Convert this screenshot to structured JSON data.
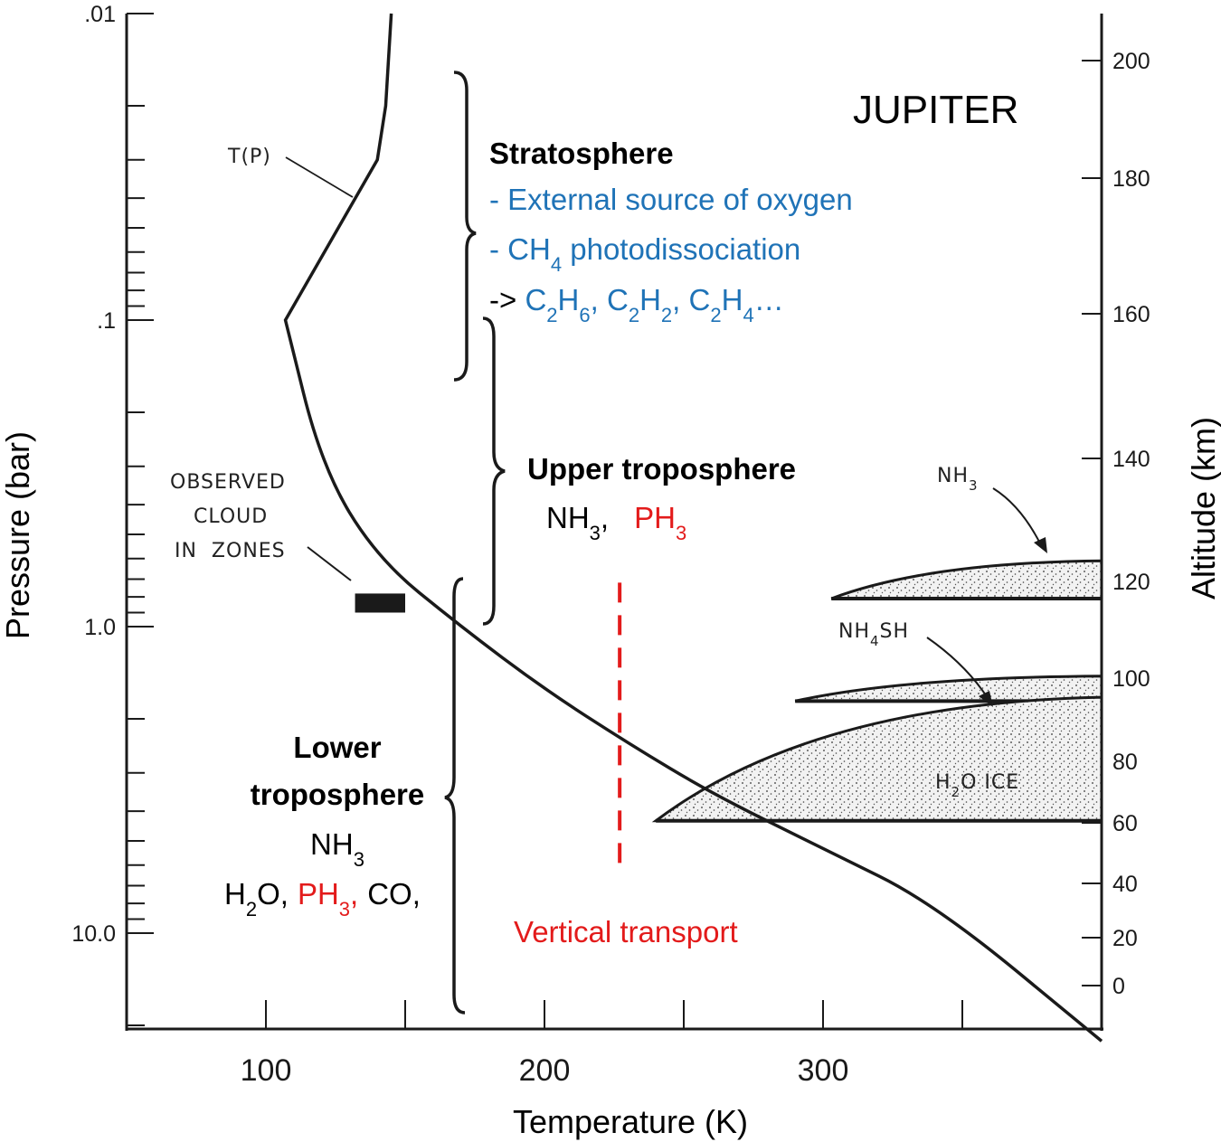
{
  "chart_data": {
    "type": "line",
    "title": "JUPITER",
    "xlabel": "Temperature (K)",
    "ylabel": "Pressure (bar)",
    "y2label": "Altitude (km)",
    "xlim": [
      50,
      400
    ],
    "ylim": [
      0.01,
      30
    ],
    "y_scale": "log",
    "y_inverted": true,
    "x_ticks": [
      100,
      200,
      300
    ],
    "x_tick_labels": [
      "100",
      "200",
      "300"
    ],
    "y_tick_labels": [
      ".01",
      ".1",
      "1.0",
      "10.0"
    ],
    "y_tick_values": [
      0.01,
      0.1,
      1,
      10
    ],
    "y2_ticks": [
      200,
      180,
      160,
      140,
      120,
      100,
      80,
      60,
      40,
      20,
      0
    ],
    "y2_tick_labels": [
      "200",
      "180",
      "160",
      "140",
      "120",
      "100",
      "80",
      "60",
      "40",
      "20",
      "0"
    ],
    "grid": false,
    "series": [
      {
        "name": "T(P)",
        "x": [
          145,
          143,
          140,
          107,
          120,
          140,
          170,
          200,
          230,
          260,
          300,
          340,
          400
        ],
        "y": [
          0.01,
          0.02,
          0.03,
          0.1,
          0.3,
          0.6,
          1.0,
          1.6,
          2.4,
          3.5,
          5.3,
          8.0,
          22.5
        ]
      }
    ],
    "cloud_layers": [
      {
        "label": "NH3",
        "label_sub": "3",
        "top_pressure": 0.61,
        "base_pressure": 0.81,
        "min_temperature": 303
      },
      {
        "label": "NH4SH",
        "label_sub": "4",
        "top_pressure": 1.45,
        "base_pressure": 1.75,
        "min_temperature": 290
      },
      {
        "label": "H2O ICE",
        "label_sub": "2",
        "top_pressure": 1.7,
        "base_pressure": 4.3,
        "min_temperature": 240
      }
    ],
    "observed_cloud": {
      "label_lines": [
        "OBSERVED",
        "CLOUD",
        "IN  ZONES"
      ],
      "t_range": [
        132,
        150
      ],
      "p_range": [
        0.78,
        0.9
      ]
    },
    "vertical_transport_temperature": 227,
    "vertical_transport_p_range": [
      0.78,
      6.0
    ]
  },
  "regions": {
    "stratosphere": {
      "title": "Stratosphere",
      "line1": "- External source of oxygen",
      "line2_prefix": "- CH",
      "line2_sub": "4",
      "line2_suffix": " photodissociation",
      "line3_arrow": "-> ",
      "line3_products": [
        {
          "a": "C",
          "sub1": "2",
          "b": "H",
          "sub2": "6",
          "sep": ", "
        },
        {
          "a": "C",
          "sub1": "2",
          "b": "H",
          "sub2": "2",
          "sep": ", "
        },
        {
          "a": "C",
          "sub1": "2",
          "b": "H",
          "sub2": "4",
          "sep": "…"
        }
      ]
    },
    "upper_troposphere": {
      "title": "Upper troposphere",
      "species_black": "NH",
      "species_black_sub": "3",
      "species_black_tail": ",",
      "species_red": "PH",
      "species_red_sub": "3"
    },
    "lower_troposphere": {
      "title_line1": "Lower",
      "title_line2": "troposphere",
      "species1": "NH",
      "species1_sub": "3",
      "h2o_a": "H",
      "h2o_sub": "2",
      "h2o_b": "O,",
      "ph3": "PH",
      "ph3_sub": "3",
      "ph3_tail": ",",
      "co": "CO,"
    },
    "vertical_transport_label": "Vertical transport"
  },
  "colors": {
    "blue_text": "#1f73b7",
    "red_text": "#e31b1b",
    "line": "#1a1a1a",
    "cloud_fill": "#f0f0f0"
  }
}
